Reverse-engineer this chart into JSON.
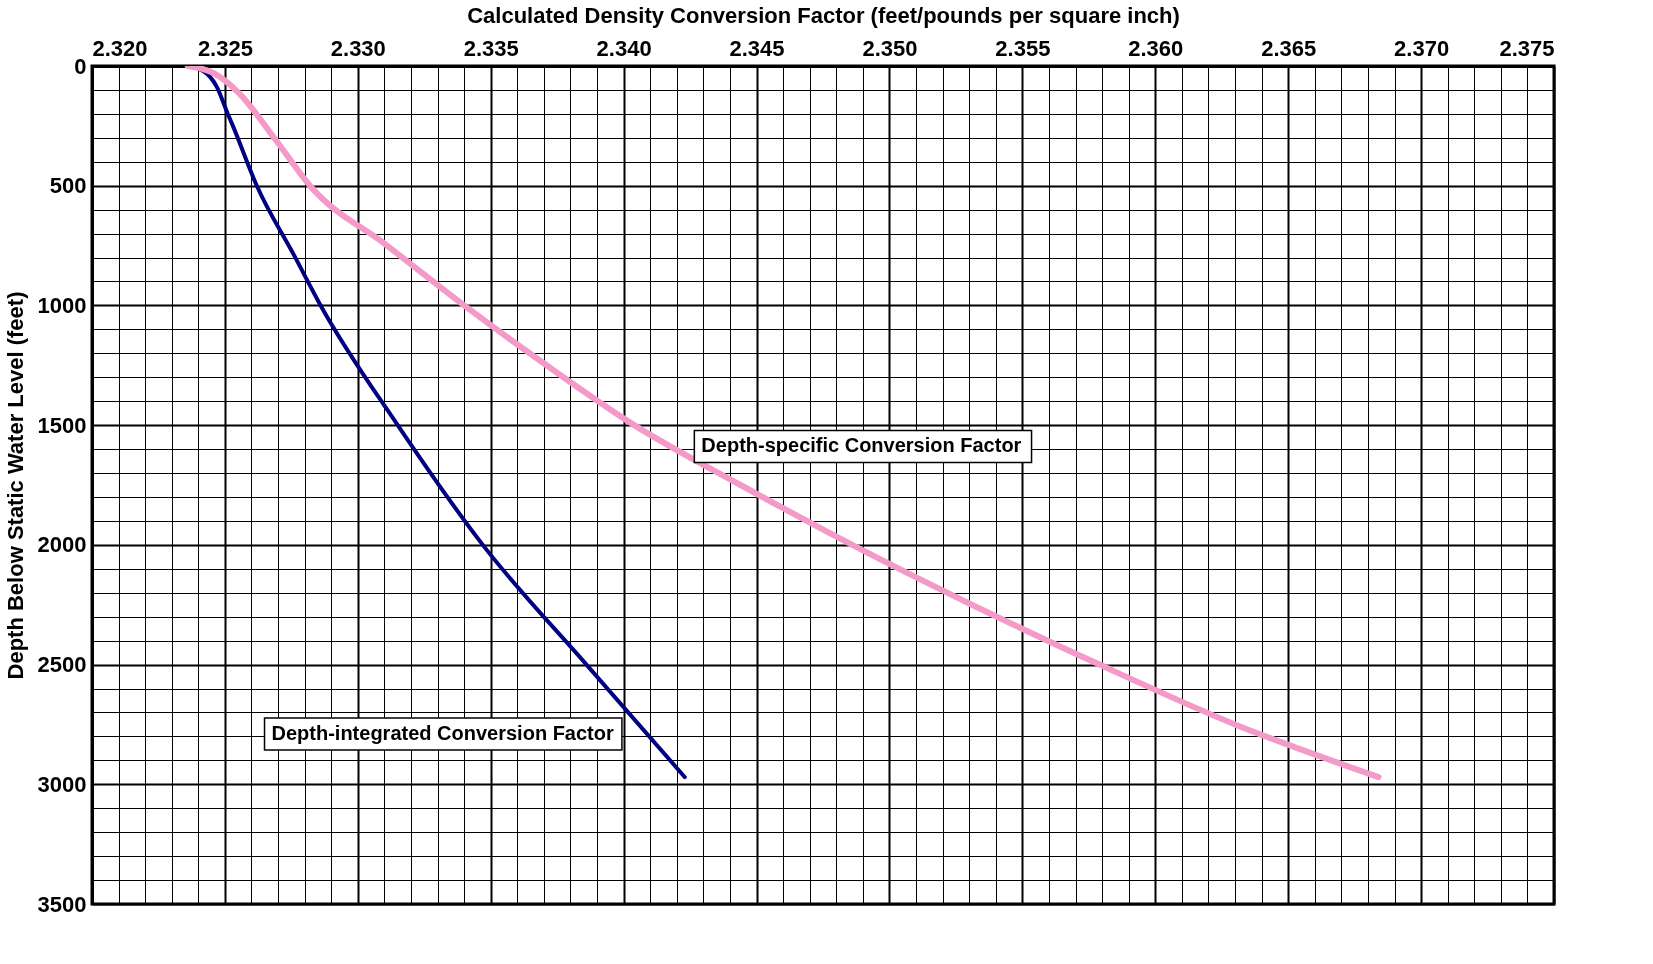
{
  "chart_data": {
    "type": "line",
    "xlabel": "Calculated Density Conversion Factor (feet/pounds per square inch)",
    "ylabel": "Depth Below Static Water Level (feet)",
    "xlim": [
      2.32,
      2.375
    ],
    "ylim": [
      3500,
      0
    ],
    "xticks": [
      {
        "value": 2.32,
        "label": "2.320"
      },
      {
        "value": 2.321,
        "label": null
      },
      {
        "value": 2.322,
        "label": null
      },
      {
        "value": 2.323,
        "label": null
      },
      {
        "value": 2.324,
        "label": null
      },
      2.325,
      {
        "value": 2.326,
        "label": null
      },
      {
        "value": 2.327,
        "label": null
      },
      {
        "value": 2.328,
        "label": null
      },
      {
        "value": 2.329,
        "label": null
      },
      {
        "value": 2.33,
        "label": "2.330"
      },
      {
        "value": 2.331,
        "label": null
      },
      {
        "value": 2.332,
        "label": null
      },
      {
        "value": 2.333,
        "label": null
      },
      {
        "value": 2.334,
        "label": null
      },
      2.335,
      {
        "value": 2.336,
        "label": null
      },
      {
        "value": 2.337,
        "label": null
      },
      {
        "value": 2.338,
        "label": null
      },
      {
        "value": 2.339,
        "label": null
      },
      {
        "value": 2.34,
        "label": "2.340"
      },
      {
        "value": 2.341,
        "label": null
      },
      {
        "value": 2.342,
        "label": null
      },
      {
        "value": 2.343,
        "label": null
      },
      {
        "value": 2.344,
        "label": null
      },
      2.345,
      {
        "value": 2.346,
        "label": null
      },
      {
        "value": 2.347,
        "label": null
      },
      {
        "value": 2.348,
        "label": null
      },
      {
        "value": 2.349,
        "label": null
      },
      {
        "value": 2.35,
        "label": "2.350"
      },
      {
        "value": 2.351,
        "label": null
      },
      {
        "value": 2.352,
        "label": null
      },
      {
        "value": 2.353,
        "label": null
      },
      {
        "value": 2.354,
        "label": null
      },
      2.355,
      {
        "value": 2.356,
        "label": null
      },
      {
        "value": 2.357,
        "label": null
      },
      {
        "value": 2.358,
        "label": null
      },
      {
        "value": 2.359,
        "label": null
      },
      {
        "value": 2.36,
        "label": "2.360"
      },
      {
        "value": 2.361,
        "label": null
      },
      {
        "value": 2.362,
        "label": null
      },
      {
        "value": 2.363,
        "label": null
      },
      {
        "value": 2.364,
        "label": null
      },
      2.365,
      {
        "value": 2.366,
        "label": null
      },
      {
        "value": 2.367,
        "label": null
      },
      {
        "value": 2.368,
        "label": null
      },
      {
        "value": 2.369,
        "label": null
      },
      {
        "value": 2.37,
        "label": "2.370"
      },
      {
        "value": 2.371,
        "label": null
      },
      {
        "value": 2.372,
        "label": null
      },
      {
        "value": 2.373,
        "label": null
      },
      {
        "value": 2.374,
        "label": null
      },
      2.375
    ],
    "yticks": [
      0,
      {
        "value": 100,
        "label": null
      },
      {
        "value": 200,
        "label": null
      },
      {
        "value": 300,
        "label": null
      },
      {
        "value": 400,
        "label": null
      },
      500,
      {
        "value": 600,
        "label": null
      },
      {
        "value": 700,
        "label": null
      },
      {
        "value": 800,
        "label": null
      },
      {
        "value": 900,
        "label": null
      },
      1000,
      {
        "value": 1100,
        "label": null
      },
      {
        "value": 1200,
        "label": null
      },
      {
        "value": 1300,
        "label": null
      },
      {
        "value": 1400,
        "label": null
      },
      1500,
      {
        "value": 1600,
        "label": null
      },
      {
        "value": 1700,
        "label": null
      },
      {
        "value": 1800,
        "label": null
      },
      {
        "value": 1900,
        "label": null
      },
      2000,
      {
        "value": 2100,
        "label": null
      },
      {
        "value": 2200,
        "label": null
      },
      {
        "value": 2300,
        "label": null
      },
      {
        "value": 2400,
        "label": null
      },
      2500,
      {
        "value": 2600,
        "label": null
      },
      {
        "value": 2700,
        "label": null
      },
      {
        "value": 2800,
        "label": null
      },
      {
        "value": 2900,
        "label": null
      },
      3000,
      {
        "value": 3100,
        "label": null
      },
      {
        "value": 3200,
        "label": null
      },
      {
        "value": 3300,
        "label": null
      },
      {
        "value": 3400,
        "label": null
      },
      3500
    ],
    "grid": true,
    "series": [
      {
        "name": "Depth-integrated Conversion Factor",
        "color": "#000080",
        "x": [
          2.3236,
          2.3242,
          2.3247,
          2.3251,
          2.3253,
          2.3262,
          2.3276,
          2.3286,
          2.3315,
          2.3347,
          2.3386,
          2.3423
        ],
        "values": [
          0,
          22,
          88,
          198,
          250,
          500,
          790,
          1000,
          1500,
          2000,
          2500,
          2970
        ]
      },
      {
        "name": "Depth-specific Conversion Factor",
        "color": "#f49ac8",
        "x": [
          2.3236,
          2.3246,
          2.3255,
          2.3269,
          2.3282,
          2.3311,
          2.334,
          2.3371,
          2.3404,
          2.3444,
          2.3486,
          2.3531,
          2.3579,
          2.363,
          2.3684
        ],
        "values": [
          0,
          31,
          110,
          307,
          500,
          750,
          1000,
          1250,
          1500,
          1750,
          2000,
          2250,
          2500,
          2750,
          2970
        ]
      }
    ]
  }
}
